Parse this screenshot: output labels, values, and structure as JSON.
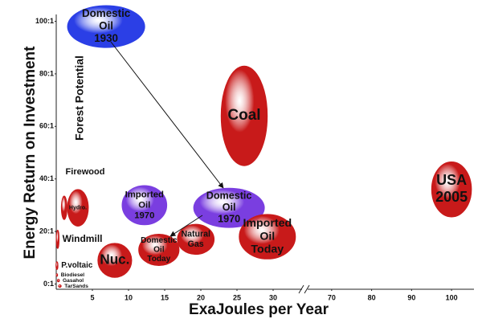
{
  "chart_data": {
    "type": "bubble",
    "x_title": "ExaJoules per Year",
    "y_title": "Energy Return on Investment",
    "annotations": [
      "Firewood",
      "Forest Potential"
    ],
    "xlim": [
      0,
      104
    ],
    "x_break": [
      34,
      64
    ],
    "xticks": [
      5,
      10,
      15,
      20,
      25,
      30,
      70,
      80,
      90,
      100
    ],
    "ylim": [
      -2,
      102
    ],
    "yticks": [
      {
        "value": 0,
        "label": "0:1"
      },
      {
        "value": 20,
        "label": "20:1"
      },
      {
        "value": 40,
        "label": "40:1"
      },
      {
        "value": 60,
        "label": "60:1"
      },
      {
        "value": 80,
        "label": "80:1"
      },
      {
        "value": 100,
        "label": "100:1"
      }
    ],
    "bubbles": [
      {
        "name": [
          "Domestic",
          "Oil",
          "1930"
        ],
        "x": 6.9,
        "y": 98,
        "w": 10.7,
        "h": 16,
        "color": "#2b3fe6"
      },
      {
        "name": [
          "Coal"
        ],
        "x": 26,
        "y": 64,
        "w": 6.4,
        "h": 38,
        "color": "#c81a1a"
      },
      {
        "name": [
          "USA",
          "2005"
        ],
        "x": 100,
        "y": 36,
        "w": 10,
        "h": 21,
        "color": "#c81a1a"
      },
      {
        "name": [
          "Domestic",
          "Oil",
          "1970"
        ],
        "x": 23.9,
        "y": 29,
        "w": 9.8,
        "h": 15,
        "color": "#7a3ee0"
      },
      {
        "name": [
          "Imported",
          "Oil",
          "1970"
        ],
        "x": 12.2,
        "y": 30,
        "w": 6.2,
        "h": 15,
        "color": "#7a3ee0"
      },
      {
        "name": [
          "Imported",
          "Oil",
          "Today"
        ],
        "x": 29.2,
        "y": 18,
        "w": 7.8,
        "h": 17,
        "color": "#c81a1a"
      },
      {
        "name": [
          "Natural",
          "Gas"
        ],
        "x": 19.3,
        "y": 17,
        "w": 5.1,
        "h": 11.5,
        "color": "#c81a1a"
      },
      {
        "name": [
          "Domestic",
          "Oil",
          "Today"
        ],
        "x": 14.2,
        "y": 13,
        "w": 5.6,
        "h": 12,
        "color": "#c81a1a"
      },
      {
        "name": [
          "Nuc."
        ],
        "x": 8.1,
        "y": 9,
        "w": 4.7,
        "h": 13,
        "color": "#c81a1a"
      },
      {
        "name": [
          "Hydro."
        ],
        "x": 3,
        "y": 29,
        "w": 2.9,
        "h": 14,
        "color": "#c81a1a"
      },
      {
        "name": null,
        "x": 1.1,
        "y": 29,
        "w": 0.8,
        "h": 9,
        "color": "#c81a1a"
      },
      {
        "name": [
          "Windmill"
        ],
        "x": 0.2,
        "y": 17,
        "w": 0.4,
        "h": 7,
        "color": "#c81a1a"
      },
      {
        "name": [
          "P.voltaic"
        ],
        "x": 0.1,
        "y": 7,
        "w": 0.3,
        "h": 3,
        "color": "#c81a1a"
      },
      {
        "name": [
          "Biodiesel"
        ],
        "x": 0.1,
        "y": 3.4,
        "w": 0.2,
        "h": 1,
        "color": "#c81a1a"
      },
      {
        "name": [
          "Gasahol"
        ],
        "x": 0.3,
        "y": 1.3,
        "w": 0.3,
        "h": 1,
        "color": "#c81a1a"
      },
      {
        "name": [
          "TarSands"
        ],
        "x": 0.5,
        "y": -0.8,
        "w": 0.4,
        "h": 1,
        "color": "#c81a1a"
      }
    ]
  }
}
